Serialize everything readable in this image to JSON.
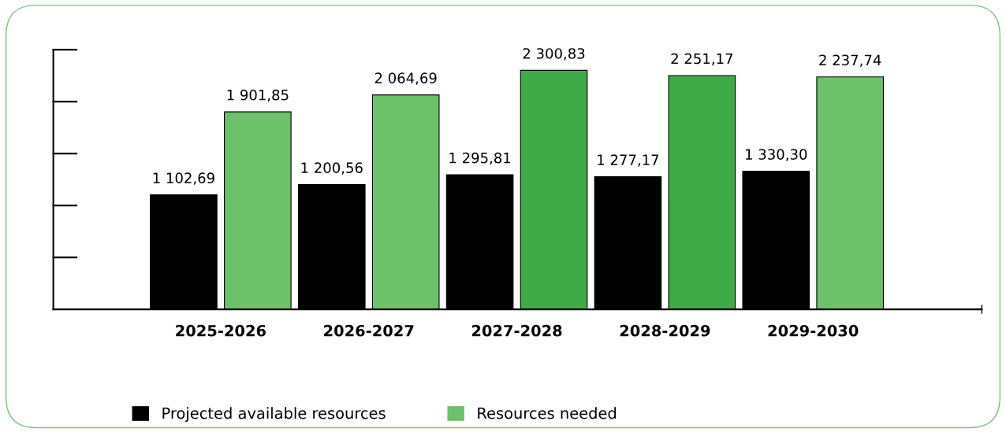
{
  "chart_data": {
    "type": "bar",
    "categories": [
      "2025-2026",
      "2026-2027",
      "2027-2028",
      "2028-2029",
      "2029-2030"
    ],
    "series": [
      {
        "name": "Projected available resources",
        "color": "#000000",
        "values": [
          1102.69,
          1200.56,
          1295.81,
          1277.17,
          1330.3
        ],
        "value_labels": [
          "1 102,69",
          "1 200,56",
          "1 295,81",
          "1 277,17",
          "1 330,30"
        ]
      },
      {
        "name": "Resources needed",
        "color": "#6cc16a",
        "colors": [
          "#6cc16a",
          "#6cc16a",
          "#3fab48",
          "#3fab48",
          "#6cc16a"
        ],
        "values": [
          1901.85,
          2064.69,
          2300.83,
          2251.17,
          2237.74
        ],
        "value_labels": [
          "1 901,85",
          "2 064,69",
          "2 300,83",
          "2 251,17",
          "2 237,74"
        ]
      }
    ],
    "ylim": [
      0,
      2500
    ],
    "grid": false,
    "legend": "bottom"
  }
}
